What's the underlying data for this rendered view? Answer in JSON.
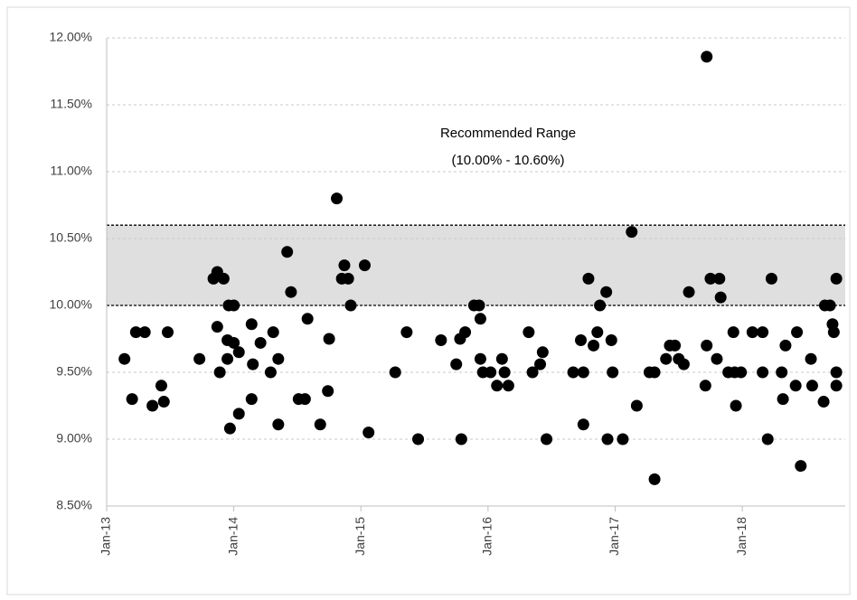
{
  "chart_data": {
    "type": "scatter",
    "annotations": [
      "Recommended Range",
      "(10.00% - 10.60%)"
    ],
    "band": [
      10,
      10.6
    ],
    "grid": true,
    "color": "#000000",
    "xlim": [
      2013,
      2018.81
    ],
    "xticks": [
      {
        "value": 2013,
        "label": "Jan-13"
      },
      {
        "value": 2014,
        "label": "Jan-14"
      },
      {
        "value": 2015,
        "label": "Jan-15"
      },
      {
        "value": 2016,
        "label": "Jan-16"
      },
      {
        "value": 2017,
        "label": "Jan-17"
      },
      {
        "value": 2018,
        "label": "Jan-18"
      }
    ],
    "ylim": [
      8.5,
      12
    ],
    "yticks": [
      {
        "value": 8.5,
        "label": "8.50%"
      },
      {
        "value": 9,
        "label": "9.00%"
      },
      {
        "value": 9.5,
        "label": "9.50%"
      },
      {
        "value": 10,
        "label": "10.00%"
      },
      {
        "value": 10.5,
        "label": "10.50%"
      },
      {
        "value": 11,
        "label": "11.00%"
      },
      {
        "value": 11.5,
        "label": "11.50%"
      },
      {
        "value": 12,
        "label": "12.00%"
      }
    ],
    "x": [
      2013.14,
      2013.2,
      2013.23,
      2013.3,
      2013.36,
      2013.43,
      2013.45,
      2013.48,
      2013.73,
      2013.84,
      2013.87,
      2013.92,
      2013.87,
      2013.89,
      2013.95,
      2013.96,
      2014.0,
      2013.95,
      2014.0,
      2013.97,
      2014.04,
      2014.04,
      2014.14,
      2014.15,
      2014.14,
      2014.21,
      2014.29,
      2014.31,
      2014.35,
      2014.35,
      2014.42,
      2014.45,
      2014.51,
      2014.56,
      2014.58,
      2014.68,
      2014.74,
      2014.75,
      2014.81,
      2014.85,
      2014.87,
      2014.9,
      2014.92,
      2015.03,
      2015.06,
      2015.27,
      2015.36,
      2015.45,
      2015.63,
      2015.75,
      2015.78,
      2015.79,
      2015.82,
      2015.89,
      2015.93,
      2015.94,
      2015.94,
      2015.96,
      2016.02,
      2016.07,
      2016.11,
      2016.13,
      2016.16,
      2016.32,
      2016.35,
      2016.41,
      2016.43,
      2016.46,
      2016.67,
      2016.73,
      2016.75,
      2016.75,
      2016.79,
      2016.83,
      2016.86,
      2016.88,
      2016.93,
      2016.94,
      2016.97,
      2016.98,
      2017.06,
      2017.13,
      2017.17,
      2017.27,
      2017.31,
      2017.31,
      2017.4,
      2017.43,
      2017.47,
      2017.5,
      2017.54,
      2017.58,
      2017.71,
      2017.72,
      2017.72,
      2017.75,
      2017.8,
      2017.82,
      2017.83,
      2017.89,
      2017.93,
      2017.94,
      2017.95,
      2017.99,
      2018.08,
      2018.16,
      2018.16,
      2018.2,
      2018.23,
      2018.31,
      2018.32,
      2018.34,
      2018.42,
      2018.43,
      2018.46,
      2018.54,
      2018.55,
      2018.64,
      2018.65,
      2018.69,
      2018.71,
      2018.72,
      2018.74,
      2018.74,
      2018.74
    ],
    "values": [
      9.6,
      9.3,
      9.8,
      9.8,
      9.25,
      9.4,
      9.28,
      9.8,
      9.6,
      10.2,
      10.25,
      10.2,
      9.84,
      9.5,
      9.6,
      10.0,
      10.0,
      9.74,
      9.72,
      9.08,
      9.65,
      9.19,
      9.86,
      9.56,
      9.3,
      9.72,
      9.5,
      9.8,
      9.6,
      9.11,
      10.4,
      10.1,
      9.3,
      9.3,
      9.9,
      9.11,
      9.36,
      9.75,
      10.8,
      10.2,
      10.3,
      10.2,
      10.0,
      10.3,
      9.05,
      9.5,
      9.8,
      9.0,
      9.74,
      9.56,
      9.75,
      9.0,
      9.8,
      10.0,
      10.0,
      9.9,
      9.6,
      9.5,
      9.5,
      9.4,
      9.6,
      9.5,
      9.4,
      9.8,
      9.5,
      9.56,
      9.65,
      9.0,
      9.5,
      9.74,
      9.5,
      9.11,
      10.2,
      9.7,
      9.8,
      10.0,
      10.1,
      9.0,
      9.74,
      9.5,
      9.0,
      10.55,
      9.25,
      9.5,
      9.5,
      8.7,
      9.6,
      9.7,
      9.7,
      9.6,
      9.56,
      10.1,
      9.4,
      9.7,
      11.86,
      10.2,
      9.6,
      10.2,
      10.06,
      9.5,
      9.8,
      9.5,
      9.25,
      9.5,
      9.8,
      9.8,
      9.5,
      9.0,
      10.2,
      9.5,
      9.3,
      9.7,
      9.4,
      9.8,
      8.8,
      9.6,
      9.4,
      9.28,
      10.0,
      10.0,
      9.86,
      9.8,
      10.2,
      9.5,
      9.4
    ]
  }
}
